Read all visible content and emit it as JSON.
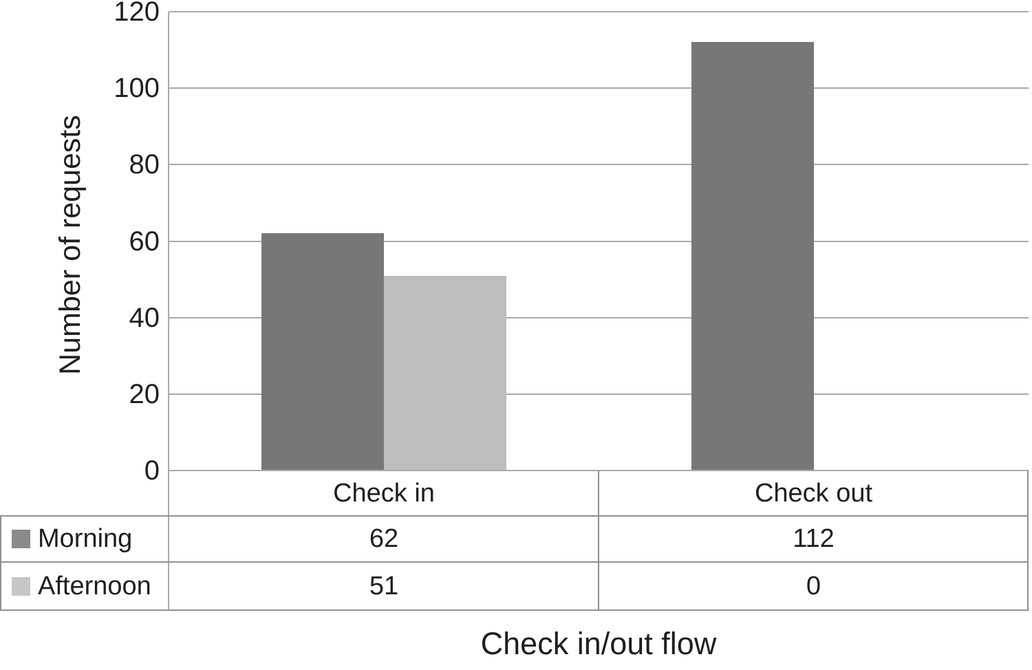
{
  "chart_data": {
    "type": "bar",
    "categories": [
      "Check in",
      "Check out"
    ],
    "series": [
      {
        "name": "Morning",
        "values": [
          62,
          112
        ],
        "color": "#77777a",
        "swatch_color": "#8a8a8d"
      },
      {
        "name": "Afternoon",
        "values": [
          51,
          0
        ],
        "color": "#bdbdbf",
        "swatch_color": "#c6c6c8"
      }
    ],
    "title": "",
    "xlabel": "Check in/out flow",
    "ylabel": "Number of requests",
    "ylim": [
      0,
      120
    ],
    "yticks": [
      0,
      20,
      40,
      60,
      80,
      100,
      120
    ],
    "grid": true,
    "legend_position": "table-left",
    "data_table_shown": true,
    "table_values": {
      "Morning": {
        "Check in": "62",
        "Check out": "112"
      },
      "Afternoon": {
        "Check in": "51",
        "Check out": "0"
      }
    }
  },
  "colors": {
    "background": "#ffffff",
    "text": "#1f1f1f",
    "gridline": "#a9a9ab",
    "table_border": "#909093",
    "bar_morning": "#77777a",
    "bar_afternoon": "#bdbdbf"
  }
}
